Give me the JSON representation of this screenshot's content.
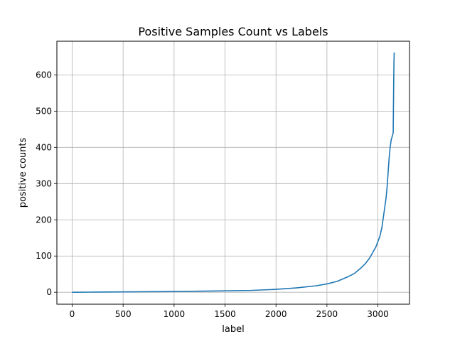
{
  "chart_data": {
    "type": "line",
    "title": "Positive Samples Count vs Labels",
    "xlabel": "label",
    "ylabel": "positive counts",
    "xlim": [
      -150,
      3310
    ],
    "ylim": [
      -33,
      693
    ],
    "xticks": [
      0,
      500,
      1000,
      1500,
      2000,
      2500,
      3000
    ],
    "yticks": [
      0,
      100,
      200,
      300,
      400,
      500,
      600
    ],
    "xtick_labels": [
      "0",
      "500",
      "1000",
      "1500",
      "2000",
      "2500",
      "3000"
    ],
    "ytick_labels": [
      "0",
      "100",
      "200",
      "300",
      "400",
      "500",
      "600"
    ],
    "grid": true,
    "series": [
      {
        "color": "#1f77b4",
        "x": [
          0,
          250,
          500,
          750,
          1000,
          1250,
          1500,
          1750,
          2000,
          2200,
          2400,
          2500,
          2600,
          2700,
          2770,
          2830,
          2880,
          2920,
          2950,
          2980,
          3000,
          3020,
          3040,
          3060,
          3080,
          3090,
          3100,
          3110,
          3120,
          3130,
          3140,
          3150,
          3152,
          3155,
          3158,
          3160
        ],
        "y": [
          0,
          0.5,
          1,
          1.5,
          2,
          3,
          4,
          5,
          8,
          12,
          18,
          23,
          30,
          42,
          52,
          66,
          80,
          95,
          110,
          125,
          140,
          155,
          180,
          220,
          260,
          290,
          330,
          370,
          400,
          420,
          430,
          440,
          500,
          580,
          640,
          662
        ]
      }
    ]
  }
}
